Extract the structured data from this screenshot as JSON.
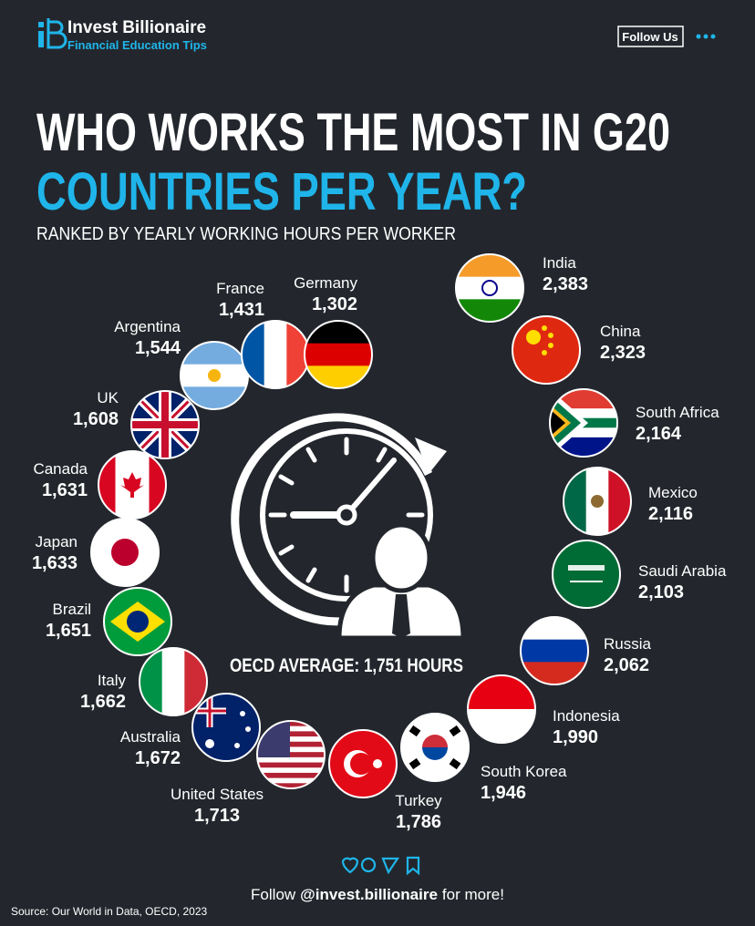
{
  "header": {
    "brand": "Invest Billionaire",
    "tagline": "Financial Education Tips",
    "follow_button": "Follow Us"
  },
  "title": {
    "line1": "WHO WORKS THE MOST IN G20",
    "line2": "COUNTRIES PER YEAR?",
    "subtitle": "RANKED BY YEARLY WORKING HOURS PER WORKER"
  },
  "countries": [
    {
      "name": "India",
      "hours": "2,383"
    },
    {
      "name": "China",
      "hours": "2,323"
    },
    {
      "name": "South Africa",
      "hours": "2,164"
    },
    {
      "name": "Mexico",
      "hours": "2,116"
    },
    {
      "name": "Saudi Arabia",
      "hours": "2,103"
    },
    {
      "name": "Russia",
      "hours": "2,062"
    },
    {
      "name": "Indonesia",
      "hours": "1,990"
    },
    {
      "name": "South Korea",
      "hours": "1,946"
    },
    {
      "name": "Turkey",
      "hours": "1,786"
    },
    {
      "name": "United States",
      "hours": "1,713"
    },
    {
      "name": "Australia",
      "hours": "1,672"
    },
    {
      "name": "Italy",
      "hours": "1,662"
    },
    {
      "name": "Brazil",
      "hours": "1,651"
    },
    {
      "name": "Japan",
      "hours": "1,633"
    },
    {
      "name": "Canada",
      "hours": "1,631"
    },
    {
      "name": "UK",
      "hours": "1,608"
    },
    {
      "name": "Argentina",
      "hours": "1,544"
    },
    {
      "name": "France",
      "hours": "1,431"
    },
    {
      "name": "Germany",
      "hours": "1,302"
    }
  ],
  "center_label": "OECD AVERAGE: 1,751 HOURS",
  "footer": {
    "follow_prefix": "Follow",
    "handle": "@invest.billionaire",
    "follow_suffix": "for more!",
    "source": "Source: Our World in Data, OECD, 2023"
  }
}
